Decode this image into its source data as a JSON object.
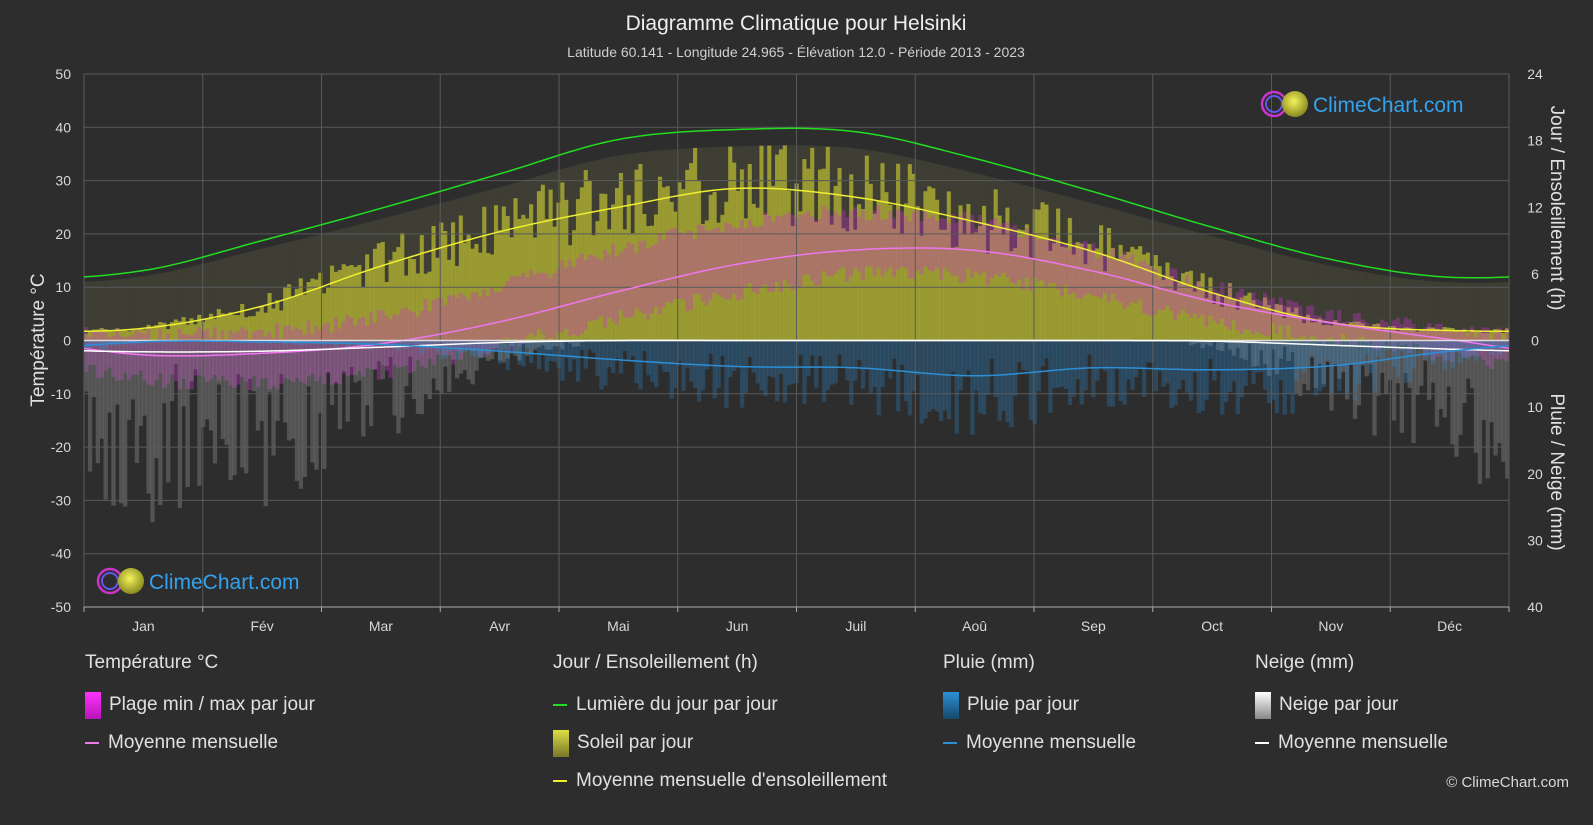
{
  "title": "Diagramme Climatique pour Helsinki",
  "subtitle": "Latitude 60.141 - Longitude 24.965 - Élévation 12.0 - Période 2013 - 2023",
  "brand": "ClimeChart.com",
  "copyright": "© ClimeChart.com",
  "axes": {
    "left_label": "Température °C",
    "right_top_label": "Jour / Ensoleillement (h)",
    "right_bottom_label": "Pluie / Neige (mm)"
  },
  "legend": {
    "temperature": {
      "title": "Température °C",
      "items": [
        "Plage min / max par jour",
        "Moyenne mensuelle"
      ]
    },
    "sun": {
      "title": "Jour / Ensoleillement (h)",
      "items": [
        "Lumière du jour par jour",
        "Soleil par jour",
        "Moyenne mensuelle d'ensoleillement"
      ]
    },
    "rain": {
      "title": "Pluie (mm)",
      "items": [
        "Pluie par jour",
        "Moyenne mensuelle"
      ]
    },
    "snow": {
      "title": "Neige (mm)",
      "items": [
        "Neige par jour",
        "Moyenne mensuelle"
      ]
    }
  },
  "colors": {
    "background": "#2d2d2d",
    "grid": "#5a5a5a",
    "daylight": "#22dd22",
    "sunshine_line": "#eeee33",
    "sunshine_fill": "#b8b832",
    "temp_mean": "#ee77ee",
    "temp_range": "#cc33cc",
    "rain": "#2d8fd6",
    "snow": "#ffffff"
  },
  "chart_data": {
    "type": "line",
    "months": [
      "Jan",
      "Fév",
      "Mar",
      "Avr",
      "Mai",
      "Jun",
      "Juil",
      "Aoû",
      "Sep",
      "Oct",
      "Nov",
      "Déc"
    ],
    "left_ticks": [
      50,
      40,
      30,
      20,
      10,
      0,
      -10,
      -20,
      -30,
      -40,
      -50
    ],
    "right_top_ticks": [
      24,
      18,
      12,
      6,
      0
    ],
    "right_bottom_ticks": [
      0,
      10,
      20,
      30,
      40
    ],
    "temp_ylim": [
      -50,
      50
    ],
    "sun_ylim": [
      0,
      24
    ],
    "precip_ylim": [
      0,
      40
    ],
    "series": {
      "daylight_hours": [
        6.3,
        9.0,
        11.9,
        15.0,
        18.1,
        19.0,
        18.8,
        16.4,
        13.4,
        10.2,
        7.3,
        5.7
      ],
      "sunshine_hours": [
        1.1,
        3.1,
        6.7,
        9.8,
        12.0,
        13.7,
        12.9,
        10.7,
        8.0,
        4.3,
        1.6,
        0.9
      ],
      "temp_mean_c": [
        -2.7,
        -2.4,
        -0.6,
        3.5,
        9.2,
        14.3,
        17.0,
        16.9,
        13.0,
        7.3,
        3.3,
        0.2
      ],
      "temp_max_c": [
        1.0,
        1.5,
        4.5,
        10.0,
        17.0,
        22.0,
        24.0,
        22.5,
        17.0,
        10.0,
        5.0,
        2.0
      ],
      "temp_min_c": [
        -7.0,
        -8.0,
        -6.0,
        -1.0,
        4.0,
        9.0,
        12.5,
        12.0,
        8.5,
        3.5,
        0.5,
        -3.0
      ],
      "rain_mean_mm": [
        0.2,
        0.2,
        0.6,
        1.6,
        2.9,
        3.9,
        4.1,
        5.3,
        4.1,
        4.4,
        3.8,
        1.6
      ],
      "snow_mean_mm": [
        1.7,
        1.6,
        1.0,
        0.3,
        0.0,
        0.0,
        0.0,
        0.0,
        0.0,
        0.1,
        0.7,
        1.3
      ]
    }
  }
}
